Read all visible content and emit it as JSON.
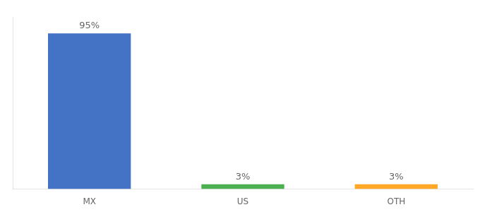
{
  "chart_data": {
    "type": "bar",
    "categories": [
      "MX",
      "US",
      "OTH"
    ],
    "values": [
      95,
      3,
      3
    ],
    "value_labels": [
      "95%",
      "3%",
      "3%"
    ],
    "colors": [
      "#4472C4",
      "#4CAF50",
      "#FFA726"
    ],
    "ylim": [
      0,
      105
    ],
    "grid": false,
    "tick_labels": "x",
    "data_labels": true
  }
}
